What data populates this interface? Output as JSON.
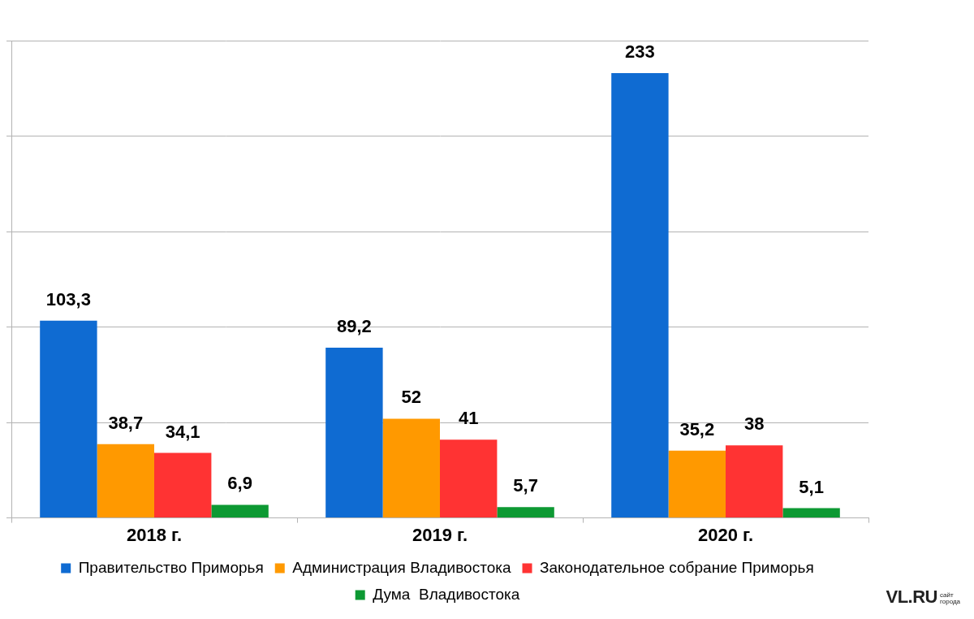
{
  "chart_data": {
    "type": "bar",
    "categories": [
      "2018 г.",
      "2019 г.",
      "2020 г."
    ],
    "series": [
      {
        "name": "Правительство Приморья",
        "color": "#0f6bd2",
        "values": [
          103.3,
          89.2,
          233
        ],
        "value_labels": [
          "103,3",
          "89,2",
          "233"
        ]
      },
      {
        "name": "Администрация Владивостока",
        "color": "#ff9900",
        "values": [
          38.7,
          52,
          35.2
        ],
        "value_labels": [
          "38,7",
          "52",
          "35,2"
        ]
      },
      {
        "name": "Законодательное собрание Приморья",
        "color": "#ff3333",
        "values": [
          34.1,
          41,
          38
        ],
        "value_labels": [
          "34,1",
          "41",
          "38"
        ]
      },
      {
        "name": "Дума  Владивостока",
        "color": "#0d9933",
        "values": [
          6.9,
          5.7,
          5.1
        ],
        "value_labels": [
          "6,9",
          "5,7",
          "5,1"
        ]
      }
    ],
    "ylim": [
      0,
      250
    ],
    "yticks": [
      0,
      50,
      100,
      150,
      200,
      250
    ],
    "grid": true,
    "legend": "bottom",
    "data_labels": true,
    "tick_labels": "x",
    "annotations": [
      "VL.RU",
      "сайт города"
    ]
  }
}
